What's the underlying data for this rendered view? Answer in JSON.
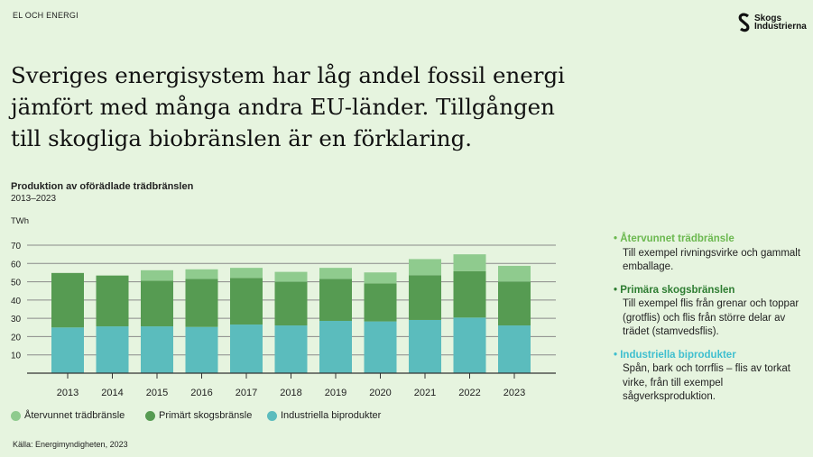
{
  "section_label": "EL OCH ENERGI",
  "logo": {
    "line1": "Skogs",
    "line2": "Industrierna"
  },
  "headline": "Sveriges energisystem har låg andel fossil energi jämfört med många andra EU-länder. Tillgången till skogliga biobränslen är en förklaring.",
  "source": "Källa: Energimyndigheten, 2023",
  "colors": {
    "recovered": "#8fcb8e",
    "primary": "#569b52",
    "industrial": "#5bbcbd",
    "background": "#e6f4df"
  },
  "chart_data": {
    "type": "bar",
    "stacked": true,
    "title": "Produktion av oförädlade trädbränslen",
    "subtitle": "2013–2023",
    "ylabel": "TWh",
    "ylim": [
      0,
      70
    ],
    "yticks": [
      10,
      20,
      30,
      40,
      50,
      60,
      70
    ],
    "grid": true,
    "legend_position": "bottom",
    "categories": [
      "2013",
      "2014",
      "2015",
      "2016",
      "2017",
      "2018",
      "2019",
      "2020",
      "2021",
      "2022",
      "2023"
    ],
    "series": [
      {
        "name": "Industriella biprodukter",
        "values": [
          25.0,
          25.6,
          25.6,
          25.3,
          26.6,
          26.1,
          28.6,
          28.3,
          29.1,
          30.4,
          26.1
        ]
      },
      {
        "name": "Primärt skogsbränsle",
        "values": [
          29.8,
          27.8,
          25.0,
          26.3,
          25.5,
          23.9,
          23.0,
          20.8,
          24.5,
          25.4,
          24.0
        ]
      },
      {
        "name": "Återvunnet trädbränsle",
        "values": [
          0,
          0,
          5.7,
          5.2,
          5.5,
          5.4,
          6.0,
          6.0,
          8.8,
          9.2,
          8.6
        ]
      }
    ]
  },
  "side_legend": [
    {
      "title": "Återvunnet trädbränsle",
      "color": "#6bb84f",
      "text": "Till exempel rivningsvirke och gammalt emballage."
    },
    {
      "title": "Primära skogsbränslen",
      "color": "#2e7d32",
      "text": "Till exempel flis från grenar och toppar (grotflis) och flis från större delar av trädet (stamvedsflis)."
    },
    {
      "title": "Industriella biprodukter",
      "color": "#3fbfcf",
      "text": "Spån, bark och torrflis – flis av torkat virke, från till exempel sågverksproduktion."
    }
  ]
}
